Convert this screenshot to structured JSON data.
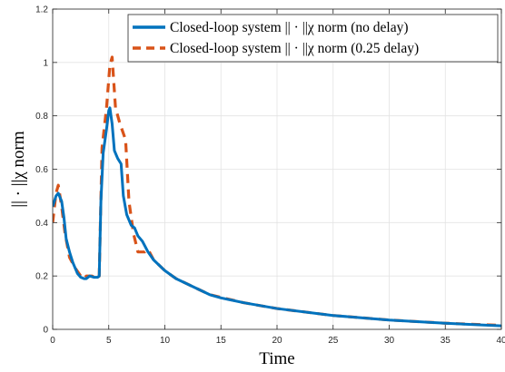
{
  "chart_data": {
    "type": "line",
    "title": "",
    "xlabel": "Time",
    "ylabel": "|| · ||χ norm",
    "xlim": [
      0,
      40
    ],
    "ylim": [
      0,
      1.2
    ],
    "x_ticks": [
      "0",
      "5",
      "10",
      "15",
      "20",
      "25",
      "30",
      "35",
      "40"
    ],
    "y_ticks": [
      "0",
      "0.2",
      "0.4",
      "0.6",
      "0.8",
      "1",
      "1.2"
    ],
    "grid": true,
    "legend_position": "top-right",
    "series": [
      {
        "name": "Closed-loop system || · ||χ norm (no delay)",
        "color": "#0072BD",
        "style": "solid",
        "points": [
          [
            0,
            0.46
          ],
          [
            0.3,
            0.5
          ],
          [
            0.5,
            0.51
          ],
          [
            0.8,
            0.48
          ],
          [
            1.0,
            0.42
          ],
          [
            1.2,
            0.34
          ],
          [
            1.5,
            0.29
          ],
          [
            1.8,
            0.25
          ],
          [
            2.2,
            0.21
          ],
          [
            2.5,
            0.195
          ],
          [
            2.8,
            0.19
          ],
          [
            3.0,
            0.19
          ],
          [
            3.3,
            0.2
          ],
          [
            3.7,
            0.195
          ],
          [
            4.0,
            0.195
          ],
          [
            4.15,
            0.2
          ],
          [
            4.3,
            0.48
          ],
          [
            4.5,
            0.66
          ],
          [
            4.8,
            0.75
          ],
          [
            5.0,
            0.82
          ],
          [
            5.1,
            0.83
          ],
          [
            5.3,
            0.77
          ],
          [
            5.5,
            0.67
          ],
          [
            5.8,
            0.64
          ],
          [
            6.1,
            0.62
          ],
          [
            6.3,
            0.5
          ],
          [
            6.6,
            0.43
          ],
          [
            7.0,
            0.39
          ],
          [
            7.3,
            0.38
          ],
          [
            7.6,
            0.35
          ],
          [
            8.0,
            0.33
          ],
          [
            8.5,
            0.29
          ],
          [
            9.0,
            0.26
          ],
          [
            10,
            0.22
          ],
          [
            11,
            0.19
          ],
          [
            12,
            0.17
          ],
          [
            13,
            0.15
          ],
          [
            14,
            0.13
          ],
          [
            15,
            0.118
          ],
          [
            17,
            0.1
          ],
          [
            20,
            0.078
          ],
          [
            25,
            0.052
          ],
          [
            30,
            0.035
          ],
          [
            35,
            0.023
          ],
          [
            40,
            0.013
          ]
        ]
      },
      {
        "name": "Closed-loop system || · ||χ norm (0.25 delay)",
        "color": "#D95319",
        "style": "dashed",
        "points": [
          [
            0,
            0.4
          ],
          [
            0.3,
            0.51
          ],
          [
            0.5,
            0.54
          ],
          [
            0.8,
            0.46
          ],
          [
            1.1,
            0.36
          ],
          [
            1.5,
            0.27
          ],
          [
            2.0,
            0.23
          ],
          [
            2.5,
            0.2
          ],
          [
            2.8,
            0.19
          ],
          [
            3.0,
            0.2
          ],
          [
            3.5,
            0.2
          ],
          [
            4.0,
            0.19
          ],
          [
            4.15,
            0.2
          ],
          [
            4.4,
            0.68
          ],
          [
            4.8,
            0.83
          ],
          [
            5.1,
            0.99
          ],
          [
            5.3,
            1.02
          ],
          [
            5.6,
            0.83
          ],
          [
            6.0,
            0.77
          ],
          [
            6.5,
            0.71
          ],
          [
            6.8,
            0.48
          ],
          [
            7.2,
            0.36
          ],
          [
            7.6,
            0.29
          ],
          [
            8.2,
            0.29
          ],
          [
            8.5,
            0.3
          ],
          [
            9.0,
            0.26
          ],
          [
            10,
            0.22
          ],
          [
            11,
            0.19
          ],
          [
            12,
            0.17
          ],
          [
            13,
            0.15
          ],
          [
            14,
            0.13
          ],
          [
            15,
            0.12
          ],
          [
            17,
            0.1
          ],
          [
            20,
            0.078
          ],
          [
            25,
            0.052
          ],
          [
            30,
            0.035
          ],
          [
            35,
            0.023
          ],
          [
            40,
            0.015
          ]
        ]
      }
    ]
  }
}
